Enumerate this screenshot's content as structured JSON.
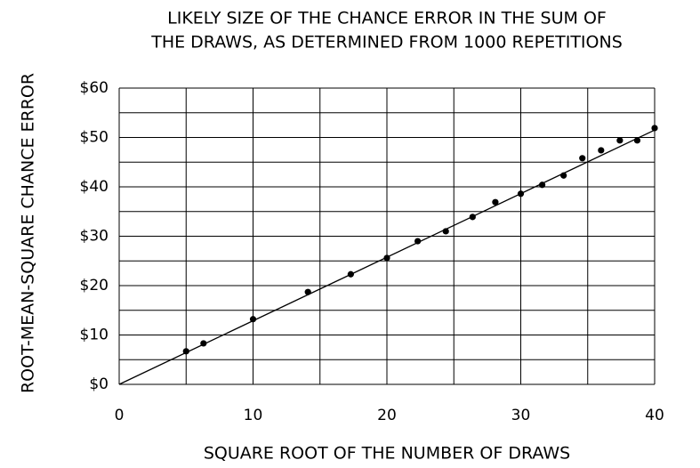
{
  "chart_data": {
    "type": "scatter",
    "title": [
      "LIKELY SIZE OF THE CHANCE ERROR IN THE SUM OF",
      "THE DRAWS, AS DETERMINED FROM 1000 REPETITIONS"
    ],
    "x_label": "SQUARE ROOT OF THE NUMBER OF DRAWS",
    "y_label": "ROOT-MEAN-SQUARE CHANCE ERROR",
    "x": [
      5,
      6.3,
      10,
      14.1,
      17.3,
      20,
      22.3,
      24.4,
      26.4,
      28.1,
      30,
      31.6,
      33.2,
      34.6,
      36,
      37.4,
      38.7,
      40
    ],
    "values": [
      6.7,
      8.3,
      13.2,
      18.7,
      22.3,
      25.6,
      29.0,
      31.0,
      33.9,
      36.9,
      38.6,
      40.4,
      42.3,
      45.8,
      47.4,
      49.4,
      49.4,
      51.9
    ],
    "color": "#000000",
    "line": {
      "x": [
        0,
        40
      ],
      "y": [
        0,
        51.5
      ]
    },
    "xlim": [
      0,
      40
    ],
    "ylim": [
      0,
      60
    ],
    "xticks": [
      0,
      10,
      20,
      30,
      40
    ],
    "yticks": [
      {
        "value": 0,
        "label": "$0"
      },
      {
        "value": 10,
        "label": "$10"
      },
      {
        "value": 20,
        "label": "$20"
      },
      {
        "value": 30,
        "label": "$30"
      },
      {
        "value": 40,
        "label": "$40"
      },
      {
        "value": 50,
        "label": "$50"
      },
      {
        "value": 60,
        "label": "$60"
      }
    ],
    "xgrid": [
      5,
      15,
      25,
      35
    ],
    "ygrid": [
      5,
      15,
      25,
      35,
      45,
      55
    ],
    "grid": true
  }
}
